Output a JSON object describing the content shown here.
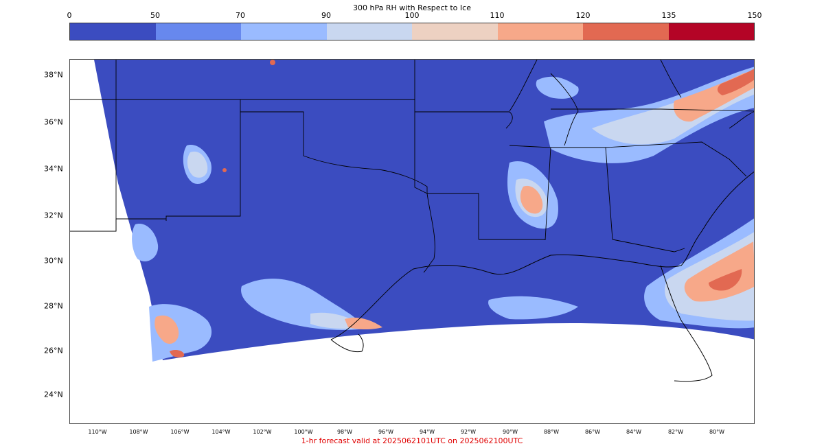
{
  "colorbar": {
    "title": "300 hPa RH with Respect to Ice",
    "ticks": [
      "0",
      "50",
      "70",
      "90",
      "100",
      "110",
      "120",
      "135",
      "150"
    ],
    "colors": [
      "#3b4cc0",
      "#6788ee",
      "#9abbff",
      "#c9d7f0",
      "#edd1c2",
      "#f7a889",
      "#e26952",
      "#b40426"
    ]
  },
  "map": {
    "lat_labels": [
      "38°N",
      "36°N",
      "34°N",
      "32°N",
      "30°N",
      "28°N",
      "26°N",
      "24°N"
    ],
    "lon_labels": [
      "110°W",
      "108°W",
      "106°W",
      "104°W",
      "102°W",
      "100°W",
      "98°W",
      "96°W",
      "94°W",
      "92°W",
      "90°W",
      "88°W",
      "86°W",
      "84°W",
      "82°W",
      "80°W"
    ],
    "border_color": "#000000",
    "background_field_color": "#3b4cc0"
  },
  "footer": {
    "text": "1-hr forecast valid at 2025062101UTC on 2025062100UTC",
    "color": "#e00000"
  }
}
